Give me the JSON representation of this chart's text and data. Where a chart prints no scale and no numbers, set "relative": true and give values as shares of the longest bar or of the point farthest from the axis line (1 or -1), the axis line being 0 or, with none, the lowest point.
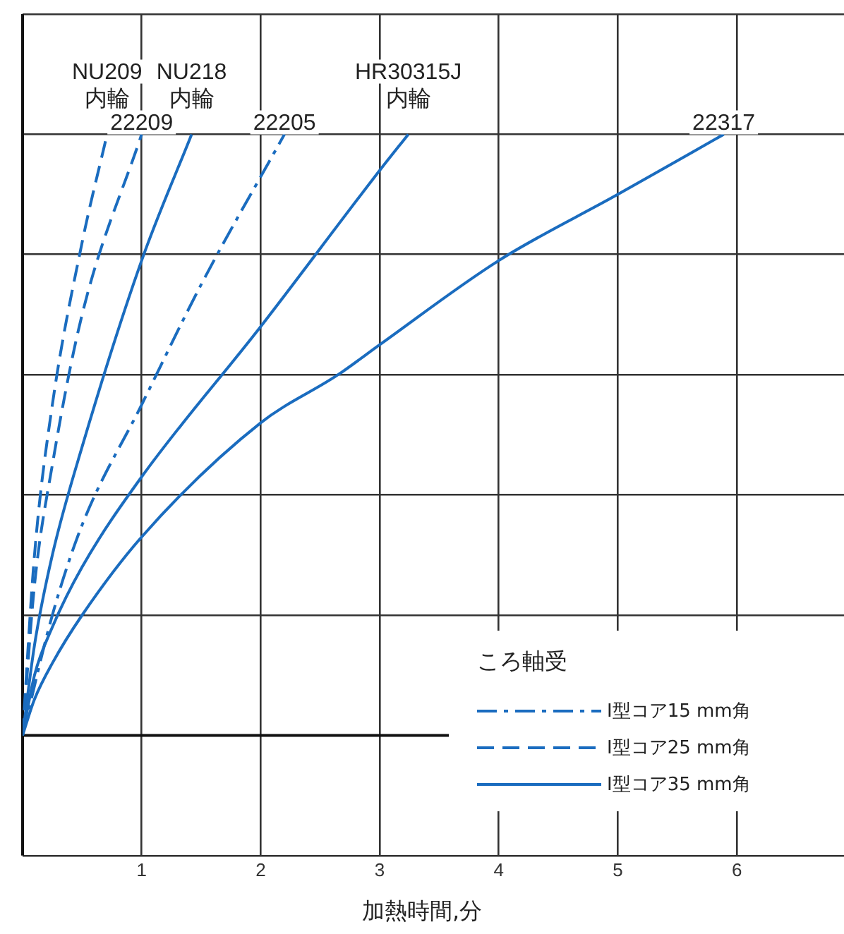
{
  "chart_data": {
    "type": "line",
    "relative": true,
    "xlabel": "加熱時間,分",
    "xlim": [
      0,
      6.9
    ],
    "xticks": [
      1,
      2,
      3,
      4,
      5,
      6
    ],
    "grid": true,
    "legend_title": "ころ軸受",
    "marker": "none",
    "annotations": [
      "I型コア15 mm角",
      "I型コア25 mm角",
      "I型コア35 mm角"
    ],
    "series": [
      {
        "name": "22205",
        "color": "#1a6cbf",
        "line_style": "dashdot",
        "x": [
          0,
          0.25,
          0.5,
          1,
          1.5,
          2.2
        ],
        "values": [
          0,
          0.2,
          0.35,
          0.55,
          0.75,
          1
        ]
      },
      {
        "name": "NU209\n内輪",
        "color": "#1a6cbf",
        "line_style": "dashed",
        "x": [
          0,
          0.1,
          0.25,
          0.5,
          0.71
        ],
        "values": [
          0,
          0.3,
          0.55,
          0.82,
          1
        ]
      },
      {
        "name": "22209",
        "color": "#1a6cbf",
        "line_style": "dashed",
        "x": [
          0,
          0.1,
          0.25,
          0.5,
          1
        ],
        "values": [
          0,
          0.25,
          0.45,
          0.7,
          1
        ]
      },
      {
        "name": "NU218\n内輪",
        "color": "#1a6cbf",
        "line_style": "solid",
        "x": [
          0,
          0.1,
          0.25,
          0.5,
          1,
          1.42
        ],
        "values": [
          0,
          0.15,
          0.3,
          0.48,
          0.79,
          1
        ]
      },
      {
        "name": "HR30315J\n内輪",
        "color": "#1a6cbf",
        "line_style": "solid",
        "x": [
          0,
          0.1,
          0.25,
          0.5,
          1,
          2,
          3,
          3.24
        ],
        "values": [
          0,
          0.1,
          0.18,
          0.28,
          0.43,
          0.68,
          0.94,
          1
        ]
      },
      {
        "name": "22317",
        "color": "#1a6cbf",
        "line_style": "solid",
        "x": [
          0,
          0.1,
          0.25,
          0.5,
          1,
          2,
          2.65,
          3,
          4,
          5,
          5.89
        ],
        "values": [
          0,
          0.06,
          0.12,
          0.2,
          0.33,
          0.52,
          0.6,
          0.65,
          0.79,
          0.9,
          1
        ]
      }
    ]
  }
}
